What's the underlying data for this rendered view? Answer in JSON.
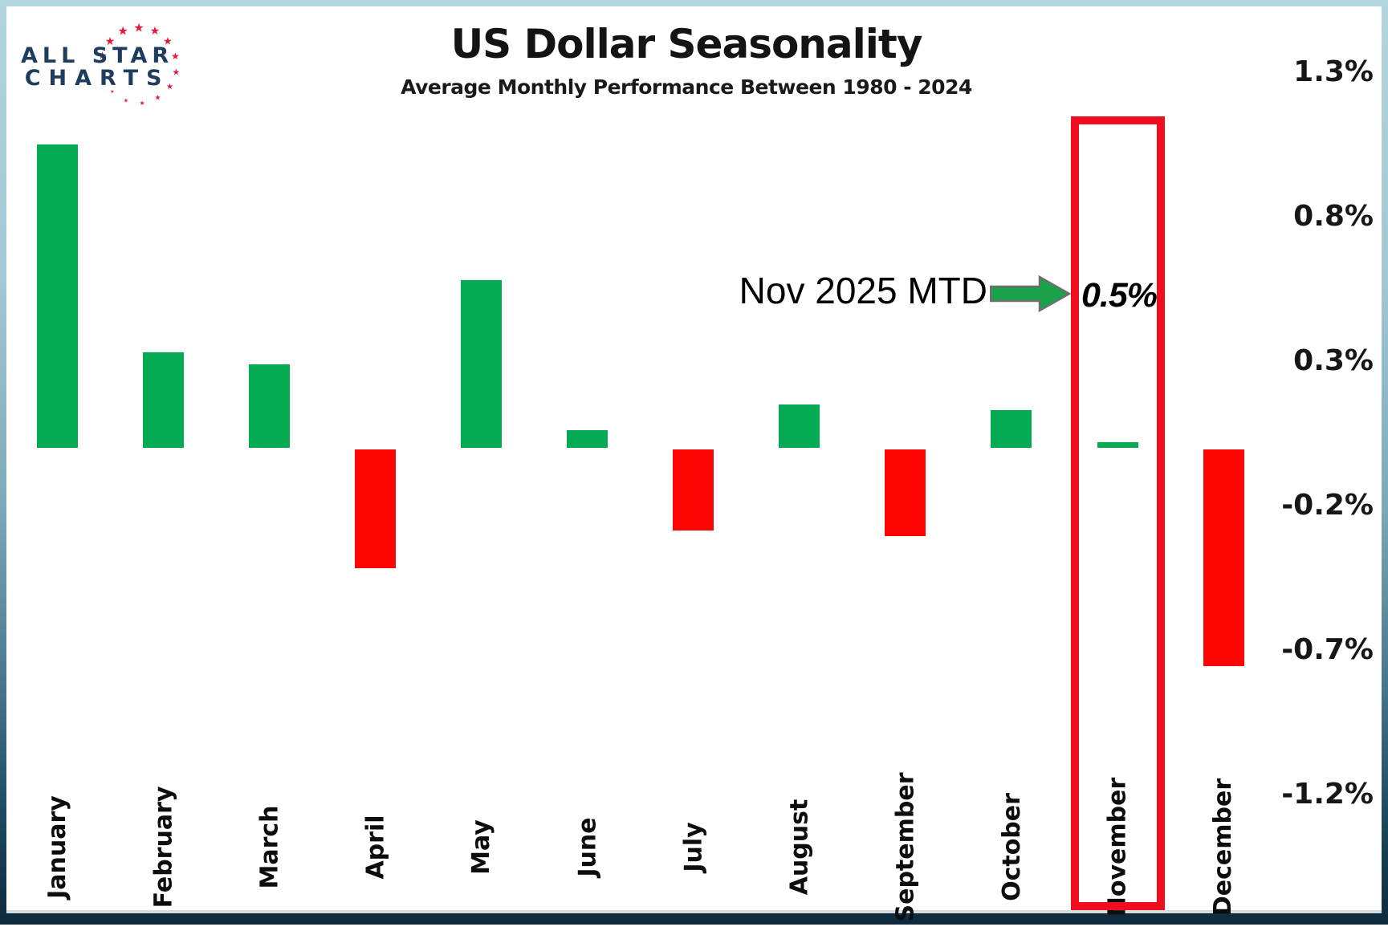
{
  "logo": {
    "line1": "ALL STAR",
    "line2": "CHARTS"
  },
  "header": {
    "title": "US Dollar Seasonality",
    "subtitle": "Average Monthly Performance Between 1980 - 2024"
  },
  "annotation": {
    "label": "Nov 2025 MTD",
    "value": "0.5%",
    "arrow_icon": "right-arrow"
  },
  "chart_data": {
    "type": "bar",
    "title": "US Dollar Seasonality",
    "subtitle": "Average Monthly Performance Between 1980 - 2024",
    "categories": [
      "January",
      "February",
      "March",
      "April",
      "May",
      "June",
      "July",
      "August",
      "September",
      "October",
      "November",
      "December"
    ],
    "values": [
      1.05,
      0.33,
      0.29,
      -0.41,
      0.58,
      0.06,
      -0.28,
      0.15,
      -0.3,
      0.13,
      0.02,
      -0.75
    ],
    "unit": "%",
    "xlabel": "",
    "ylabel": "",
    "y_tick_labels": [
      "1.3%",
      "0.8%",
      "0.3%",
      "-0.2%",
      "-0.7%",
      "-1.2%"
    ],
    "y_tick_values": [
      1.3,
      0.8,
      0.3,
      -0.2,
      -0.7,
      -1.2
    ],
    "ylim": [
      -1.6,
      1.55
    ],
    "grid": false,
    "legend": "none",
    "highlighted_category": "November",
    "annotation": {
      "label": "Nov 2025 MTD",
      "value": "0.5%",
      "points_to": "November"
    }
  },
  "colors": {
    "positive_bar": "#04ab52",
    "negative_bar": "#fe0505",
    "highlight_box": "#f20d1e",
    "arrow_fill": "#1aa24b",
    "arrow_stroke": "#6e6e6e",
    "logo_navy": "#1e3c5e",
    "logo_star_red": "#e41937",
    "title_text": "#141414",
    "frame_top": "#b2d5de",
    "frame_bottom": "#0d2a3c"
  }
}
